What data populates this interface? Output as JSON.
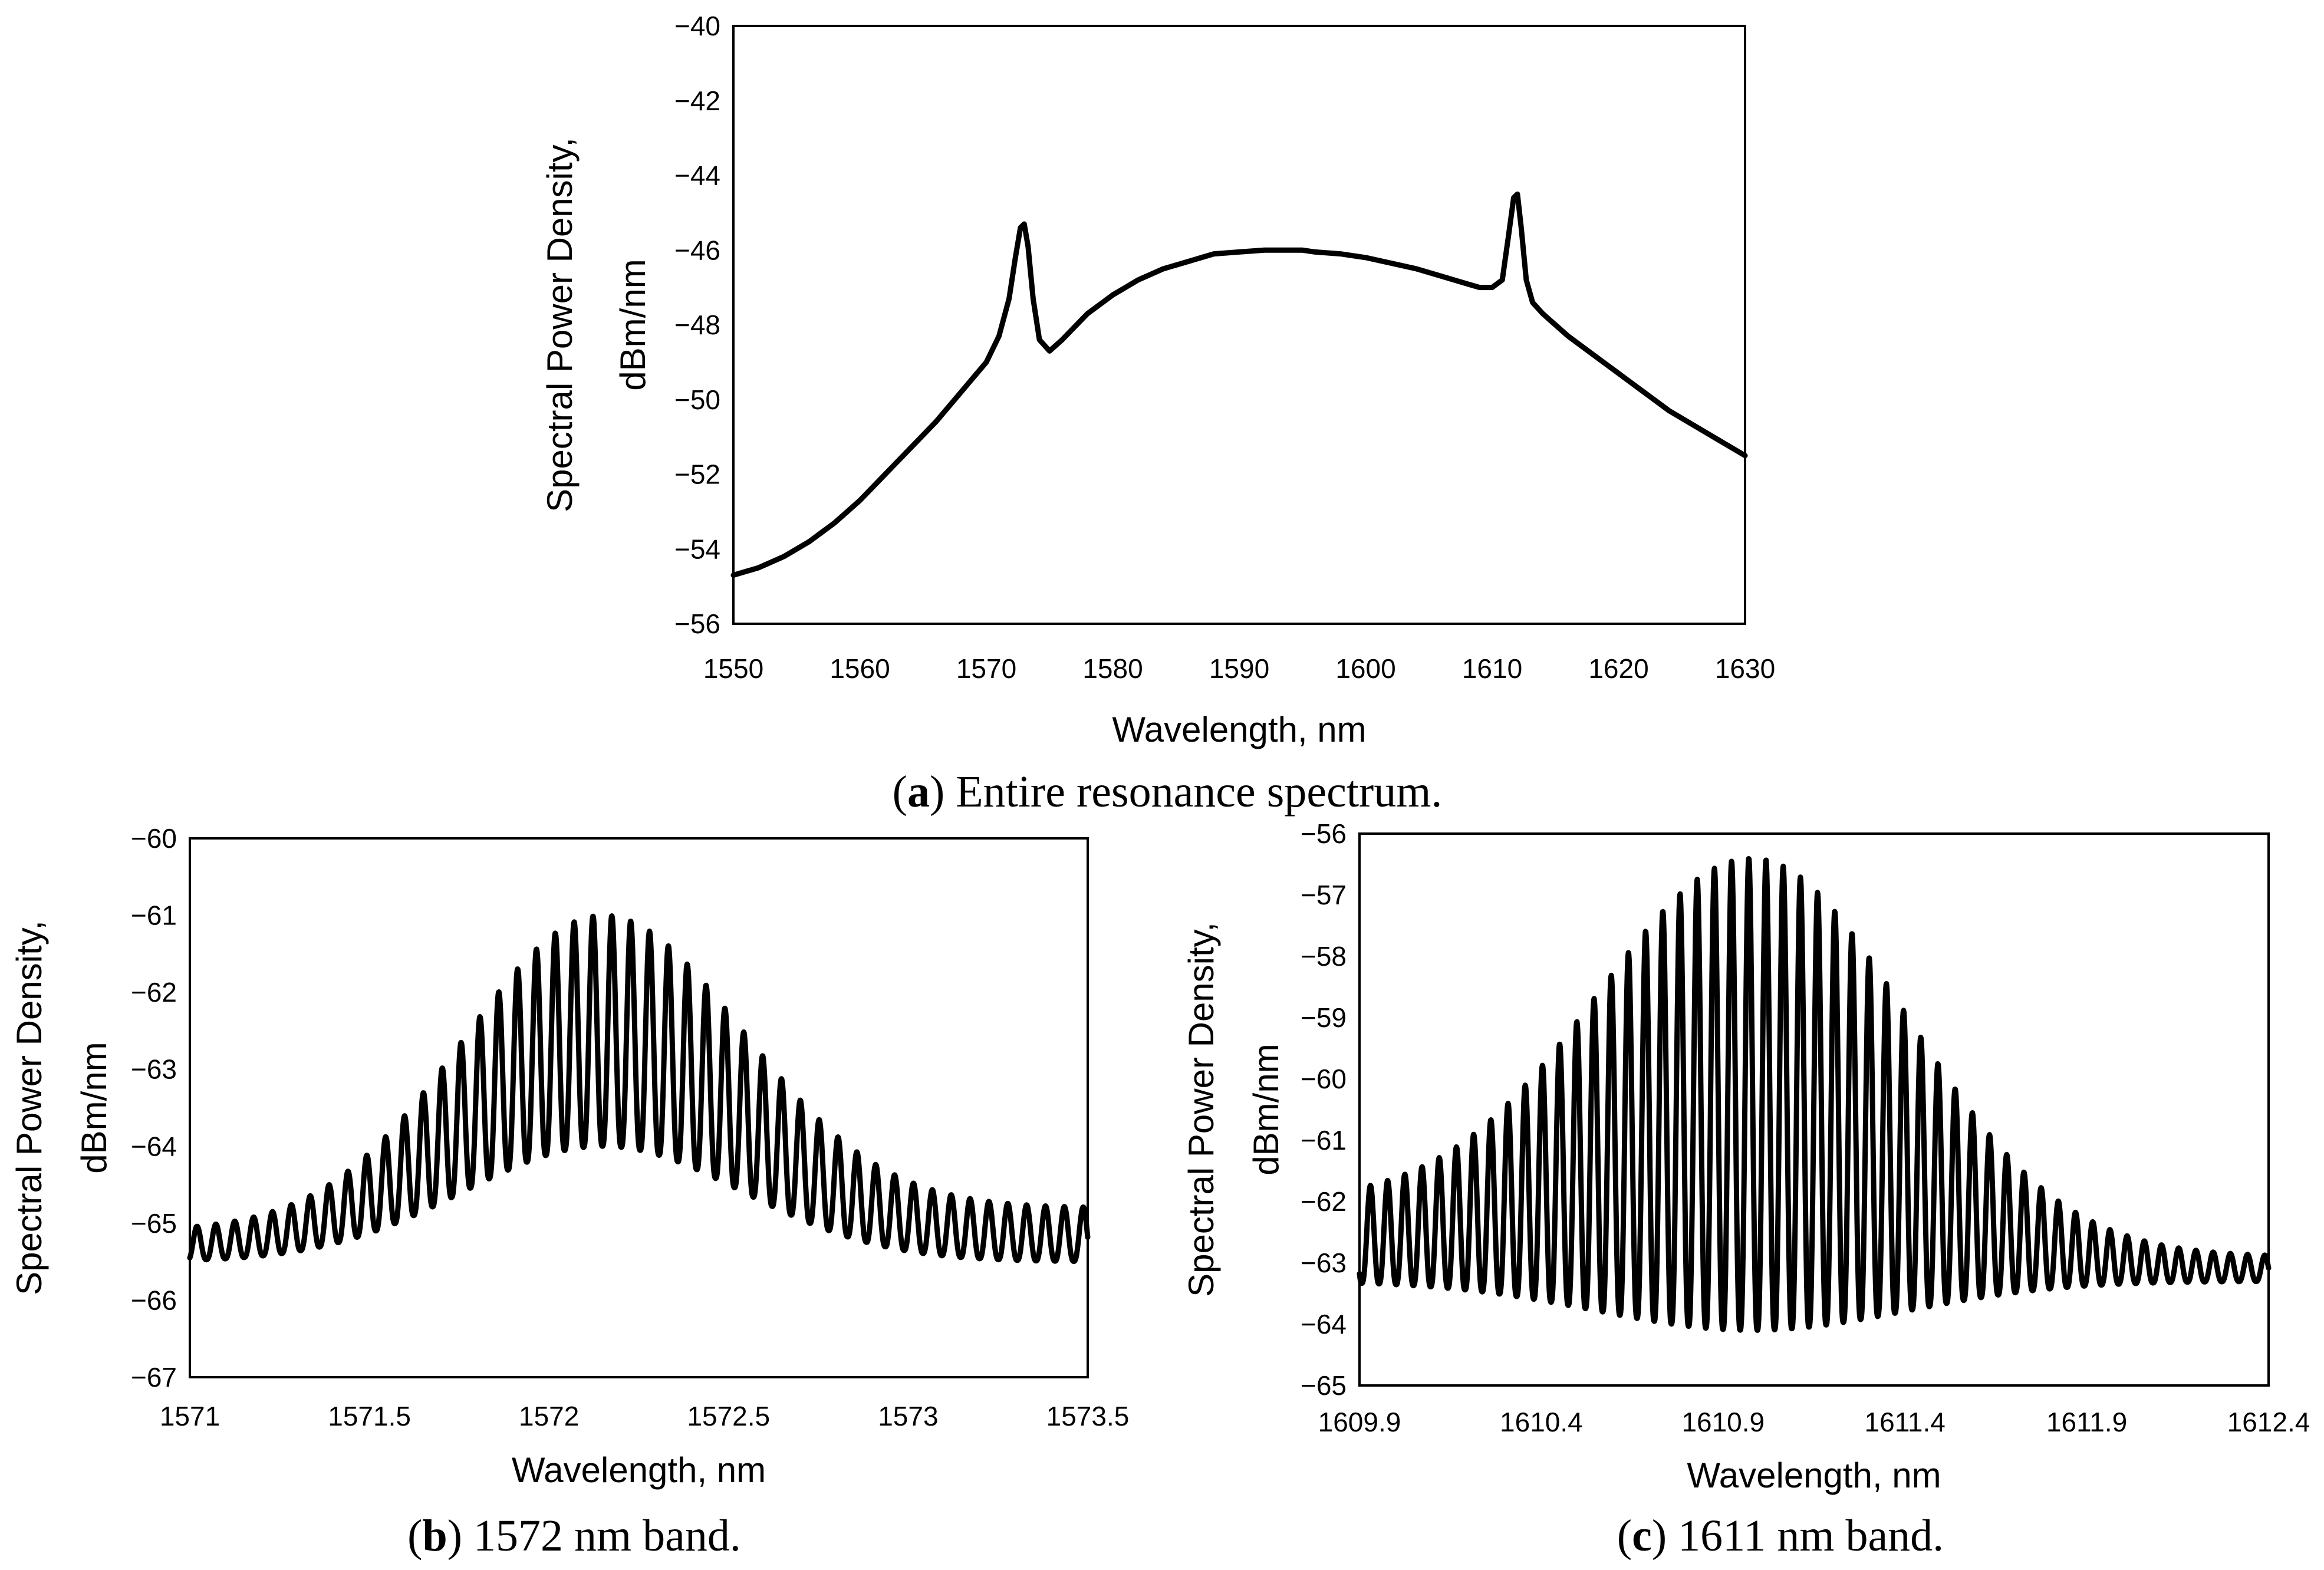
{
  "chart_data": [
    {
      "id": "a",
      "type": "line",
      "caption_letter": "a",
      "caption_text": ") Entire resonance spectrum.",
      "xlabel": "Wavelength, nm",
      "ylabel_line1": "Spectral Power Density,",
      "ylabel_line2": "dBm/nm",
      "xlim": [
        1550,
        1630
      ],
      "ylim": [
        -56,
        -40
      ],
      "xticks": [
        "1550",
        "1560",
        "1570",
        "1580",
        "1590",
        "1600",
        "1610",
        "1620",
        "1630"
      ],
      "yticks": [
        "−40",
        "−42",
        "−44",
        "−46",
        "−48",
        "−50",
        "−52",
        "−54",
        "−56"
      ],
      "series": [
        {
          "name": "spectrum",
          "x": [
            1550,
            1552,
            1554,
            1556,
            1558,
            1560,
            1562,
            1564,
            1566,
            1568,
            1570,
            1571,
            1571.8,
            1572.3,
            1572.7,
            1573,
            1573.3,
            1573.7,
            1574.2,
            1575,
            1576,
            1578,
            1580,
            1582,
            1584,
            1586,
            1588,
            1590,
            1592,
            1594,
            1595,
            1596,
            1598,
            1600,
            1602,
            1604,
            1606,
            1608,
            1609,
            1610,
            1610.8,
            1611.3,
            1611.7,
            1612,
            1612.3,
            1612.7,
            1613.2,
            1614,
            1616,
            1618,
            1620,
            1622,
            1624,
            1626,
            1628,
            1630
          ],
          "y": [
            -54.7,
            -54.5,
            -54.2,
            -53.8,
            -53.3,
            -52.7,
            -52.0,
            -51.3,
            -50.6,
            -49.8,
            -49.0,
            -48.3,
            -47.3,
            -46.2,
            -45.4,
            -45.3,
            -45.9,
            -47.3,
            -48.4,
            -48.7,
            -48.4,
            -47.7,
            -47.2,
            -46.8,
            -46.5,
            -46.3,
            -46.1,
            -46.05,
            -46.0,
            -46.0,
            -46.0,
            -46.05,
            -46.1,
            -46.2,
            -46.35,
            -46.5,
            -46.7,
            -46.9,
            -47.0,
            -47.0,
            -46.8,
            -45.6,
            -44.6,
            -44.5,
            -45.4,
            -46.8,
            -47.4,
            -47.7,
            -48.3,
            -48.8,
            -49.3,
            -49.8,
            -50.3,
            -50.7,
            -51.1,
            -51.5
          ]
        }
      ]
    },
    {
      "id": "b",
      "type": "line",
      "caption_letter": "b",
      "caption_text": ") 1572 nm band.",
      "xlabel": "Wavelength, nm",
      "ylabel_line1": "Spectral Power Density,",
      "ylabel_line2": "dBm/nm",
      "xlim": [
        1571,
        1573.5
      ],
      "ylim": [
        -67,
        -60
      ],
      "xticks": [
        "1571",
        "1571.5",
        "1572",
        "1572.5",
        "1573",
        "1573.5"
      ],
      "yticks": [
        "−60",
        "−61",
        "−62",
        "−63",
        "−64",
        "−65",
        "−66",
        "−67"
      ],
      "series": [
        {
          "name": "fringes",
          "x_start": 1571.0,
          "x_end": 1573.5,
          "fringe_period_nm": 0.0525,
          "first_peak_nm": 1571.02,
          "envelope_center_nm": 1572.15,
          "envelope_width_nm": 0.55,
          "max_peak_dbm": -61.0,
          "min_trough_dbm": -64.0,
          "edge_peak_left_dbm": -65.1,
          "edge_peak_right_dbm": -64.8,
          "edge_trough_dbm": -65.5
        }
      ]
    },
    {
      "id": "c",
      "type": "line",
      "caption_letter": "c",
      "caption_text": ") 1611 nm band.",
      "xlabel": "Wavelength, nm",
      "ylabel_line1": "Spectral Power Density,",
      "ylabel_line2": "dBm/nm",
      "xlim": [
        1609.9,
        1612.4
      ],
      "ylim": [
        -65,
        -56
      ],
      "xticks": [
        "1609.9",
        "1610.4",
        "1610.9",
        "1611.4",
        "1611.9",
        "1612.4"
      ],
      "yticks": [
        "−56",
        "−57",
        "−58",
        "−59",
        "−60",
        "−61",
        "−62",
        "−63",
        "−64",
        "−65"
      ],
      "series": [
        {
          "name": "fringes",
          "x_start": 1609.9,
          "x_end": 1612.4,
          "fringe_period_nm": 0.0473,
          "first_peak_nm": 1609.93,
          "envelope_center_nm": 1610.98,
          "envelope_width_nm": 0.6,
          "max_peak_dbm": -56.4,
          "min_trough_dbm": -64.1,
          "edge_peak_left_dbm": -62.0,
          "edge_peak_right_dbm": -62.9,
          "edge_trough_dbm": -63.3
        }
      ]
    }
  ]
}
